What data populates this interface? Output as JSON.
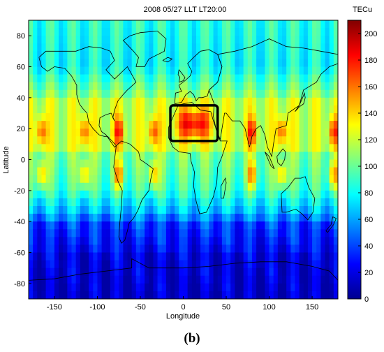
{
  "chart_data": {
    "type": "heatmap",
    "title": "2008 05/27 LLT  LT20:00",
    "xlabel": "Longitude",
    "ylabel": "Latitude",
    "xlim": [
      -180,
      180
    ],
    "ylim": [
      -90,
      90
    ],
    "xticks": [
      -150,
      -100,
      -50,
      0,
      50,
      100,
      150
    ],
    "yticks": [
      -80,
      -60,
      -40,
      -20,
      0,
      20,
      40,
      60,
      80
    ],
    "colorbar": {
      "label": "TECu",
      "range": [
        0,
        210
      ],
      "ticks": [
        0,
        20,
        40,
        60,
        80,
        100,
        120,
        140,
        160,
        180,
        200
      ]
    },
    "highlight_box": {
      "lon": [
        -15,
        40
      ],
      "lat": [
        12,
        35
      ]
    },
    "caption": "(b)",
    "description_free_grid": {
      "lon_step": 5,
      "lat_step": 5,
      "row_lats_from_north": [
        87.5,
        82.5,
        77.5,
        72.5,
        67.5,
        62.5,
        57.5,
        52.5,
        47.5,
        42.5,
        37.5,
        32.5,
        27.5,
        22.5,
        17.5,
        12.5,
        7.5,
        2.5,
        -2.5,
        -7.5,
        -12.5,
        -17.5,
        -22.5,
        -27.5,
        -32.5,
        -37.5,
        -42.5,
        -47.5,
        -52.5,
        -57.5,
        -62.5,
        -67.5,
        -72.5,
        -77.5,
        -82.5,
        -87.5
      ]
    }
  }
}
